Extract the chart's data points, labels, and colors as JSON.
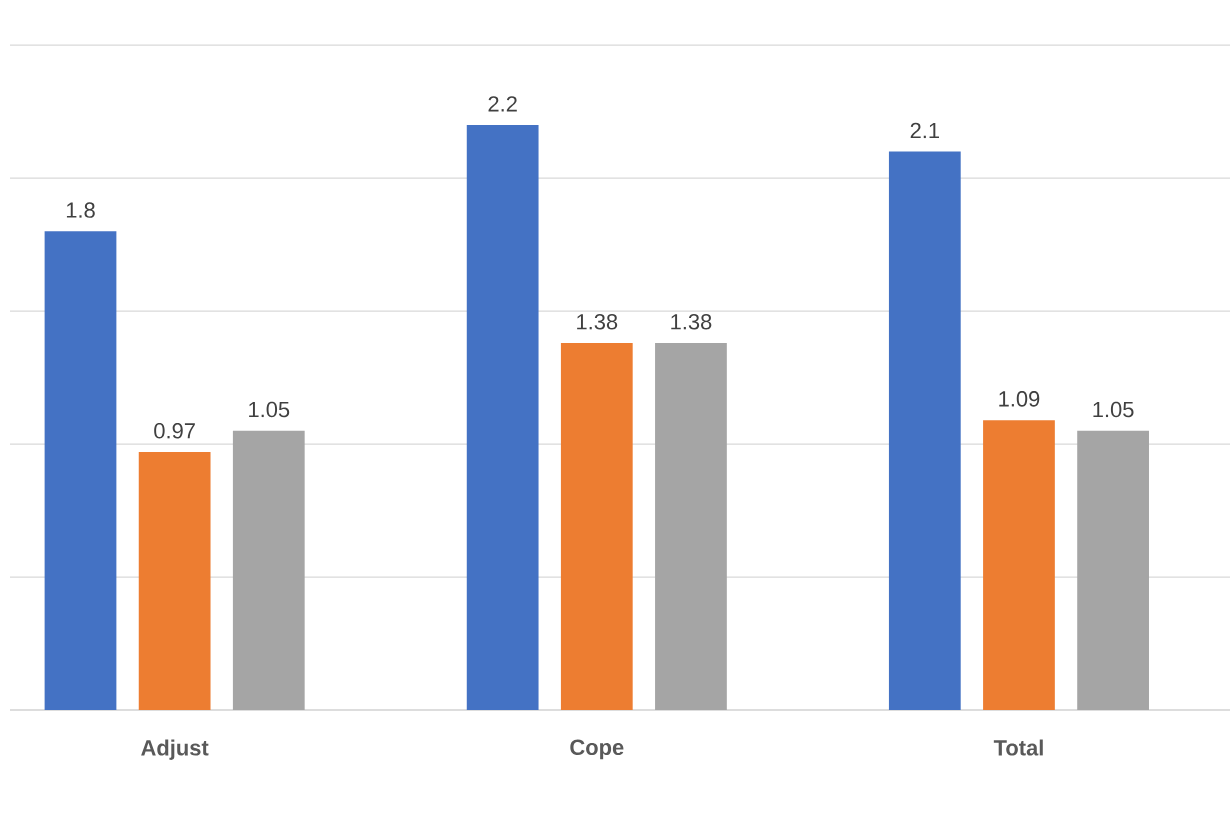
{
  "chart_data": {
    "type": "bar",
    "categories": [
      "Adjust",
      "Cope",
      "Total"
    ],
    "series": [
      {
        "color": "#4472c4",
        "values": [
          1.8,
          2.2,
          2.1
        ]
      },
      {
        "color": "#ed7d31",
        "values": [
          0.97,
          1.38,
          1.09
        ]
      },
      {
        "color": "#a5a5a5",
        "values": [
          1.05,
          1.38,
          1.05
        ]
      }
    ],
    "grid": "y",
    "tick_labels": "x",
    "data_labels": true
  }
}
